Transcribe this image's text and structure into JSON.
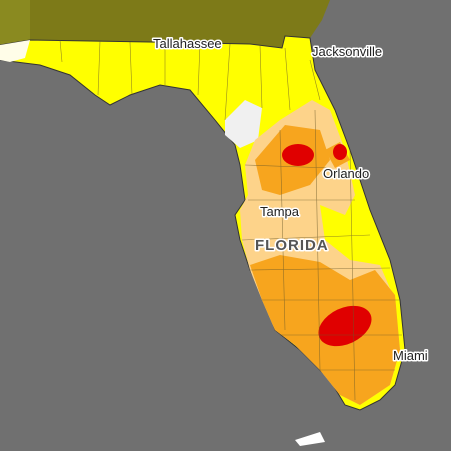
{
  "places": [
    "Tallahassee",
    "Jacksonville",
    "Orlando",
    "Tampa",
    "Miami"
  ],
  "state": "FLORIDA"
}
